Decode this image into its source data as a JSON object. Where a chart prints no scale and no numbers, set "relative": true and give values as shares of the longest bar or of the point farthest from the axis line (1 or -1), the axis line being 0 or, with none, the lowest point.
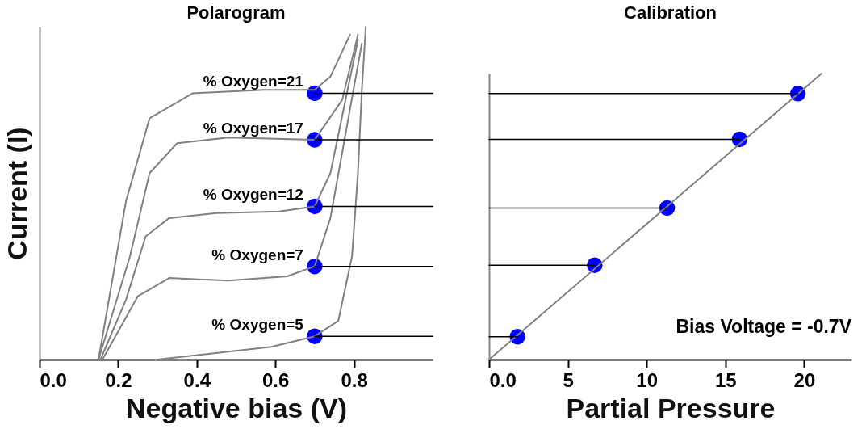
{
  "chart_data": [
    {
      "type": "line",
      "title": "Polarogram",
      "xlabel": "Negative bias (V)",
      "ylabel": "Current (I)",
      "xlim": [
        0,
        1.0
      ],
      "xticks": [
        {
          "value": 0,
          "label": "0.0"
        },
        0.2,
        0.4,
        0.6,
        0.8
      ],
      "relative": true,
      "tick_labels": "x",
      "grid": false,
      "series": [
        {
          "type": "scatter",
          "color": "#0000ff",
          "x": [
            0.7,
            0.7,
            0.7,
            0.7,
            0.7
          ],
          "values": [
            0.8,
            0.66,
            0.46,
            0.28,
            0.07
          ]
        },
        {
          "name": "% Oxygen=21",
          "type": "line",
          "color": "#808080",
          "x": [
            0.15,
            0.22,
            0.28,
            0.39,
            0.57,
            0.7,
            0.74,
            0.79
          ],
          "values": [
            0,
            0.476,
            0.725,
            0.8,
            0.81,
            0.81,
            0.85,
            0.976
          ]
        },
        {
          "name": "% Oxygen=17",
          "type": "line",
          "color": "#808080",
          "x": [
            0.15,
            0.23,
            0.28,
            0.35,
            0.48,
            0.7,
            0.77,
            0.81
          ],
          "values": [
            0,
            0.31,
            0.56,
            0.65,
            0.667,
            0.66,
            0.78,
            0.976
          ]
        },
        {
          "name": "% Oxygen=12",
          "type": "line",
          "color": "#808080",
          "x": [
            0.155,
            0.22,
            0.27,
            0.33,
            0.45,
            0.61,
            0.7,
            0.74,
            0.81
          ],
          "values": [
            0,
            0.18,
            0.37,
            0.425,
            0.44,
            0.445,
            0.46,
            0.56,
            0.96
          ]
        },
        {
          "name": "% Oxygen=7",
          "type": "line",
          "color": "#808080",
          "x": [
            0.16,
            0.25,
            0.33,
            0.48,
            0.63,
            0.7,
            0.74,
            0.82
          ],
          "values": [
            0,
            0.19,
            0.245,
            0.237,
            0.25,
            0.28,
            0.425,
            0.95
          ]
        },
        {
          "name": "% Oxygen=5",
          "type": "line",
          "color": "#808080",
          "x": [
            0.3,
            0.59,
            0.7,
            0.76,
            0.795,
            0.81,
            0.82,
            0.83
          ],
          "values": [
            0,
            0.038,
            0.07,
            0.116,
            0.31,
            0.56,
            0.81,
            1
          ]
        },
        {
          "type": "line",
          "color": "#000000",
          "x": [
            0.7,
            1.0
          ],
          "values": [
            0.8,
            0.8
          ]
        },
        {
          "type": "line",
          "color": "#000000",
          "x": [
            0.7,
            1.0
          ],
          "values": [
            0.66,
            0.66
          ]
        },
        {
          "type": "line",
          "color": "#000000",
          "x": [
            0.7,
            1.0
          ],
          "values": [
            0.46,
            0.46
          ]
        },
        {
          "type": "line",
          "color": "#000000",
          "x": [
            0.7,
            1.0
          ],
          "values": [
            0.28,
            0.28
          ]
        },
        {
          "type": "line",
          "color": "#000000",
          "x": [
            0.7,
            1.0
          ],
          "values": [
            0.07,
            0.07
          ]
        }
      ]
    },
    {
      "type": "line",
      "title": "Calibration",
      "xlabel": "Partial Pressure",
      "xlim": [
        0,
        23
      ],
      "xticks": [
        {
          "value": 0,
          "label": "0.0"
        },
        5,
        10,
        15,
        20
      ],
      "relative": true,
      "tick_labels": "x",
      "grid": false,
      "annotations": [
        "Bias Voltage = -0.7V"
      ],
      "series": [
        {
          "type": "scatter",
          "color": "#0000ff",
          "x": [
            19.6,
            15.9,
            11.3,
            6.7,
            1.8
          ],
          "values": [
            0.93,
            0.77,
            0.53,
            0.33,
            0.08
          ]
        },
        {
          "type": "line",
          "color": "#808080",
          "x": [
            0,
            21.1
          ],
          "values": [
            0,
            1
          ]
        },
        {
          "type": "line",
          "color": "#000000",
          "x": [
            0,
            19.6
          ],
          "values": [
            0.93,
            0.93
          ]
        },
        {
          "type": "line",
          "color": "#000000",
          "x": [
            0,
            15.9
          ],
          "values": [
            0.77,
            0.77
          ]
        },
        {
          "type": "line",
          "color": "#000000",
          "x": [
            0,
            11.3
          ],
          "values": [
            0.53,
            0.53
          ]
        },
        {
          "type": "line",
          "color": "#000000",
          "x": [
            0,
            6.7
          ],
          "values": [
            0.33,
            0.33
          ]
        },
        {
          "type": "line",
          "color": "#000000",
          "x": [
            0,
            1.8
          ],
          "values": [
            0.08,
            0.08
          ]
        }
      ]
    }
  ]
}
